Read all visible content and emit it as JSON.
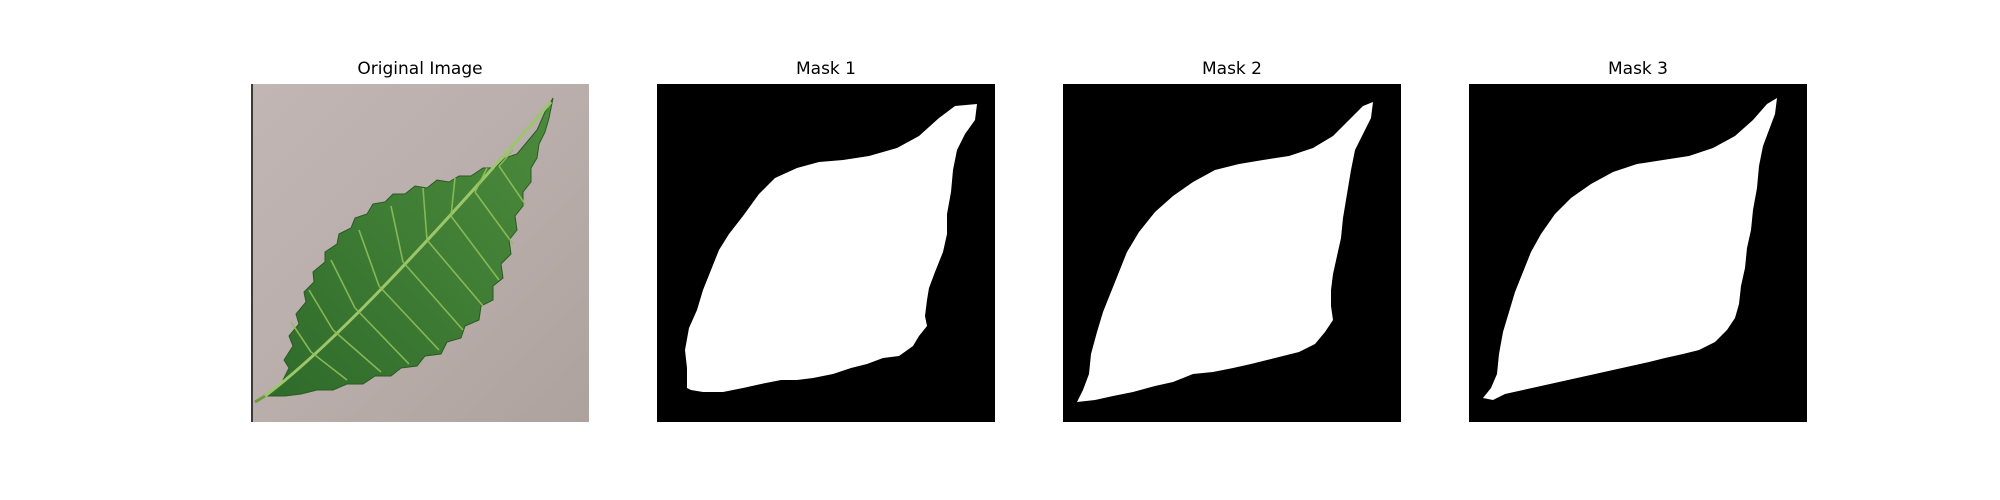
{
  "panels": [
    {
      "title": "Original Image",
      "kind": "photo"
    },
    {
      "title": "Mask 1",
      "kind": "mask"
    },
    {
      "title": "Mask 2",
      "kind": "mask"
    },
    {
      "title": "Mask 3",
      "kind": "mask"
    }
  ],
  "colors": {
    "background": "#ffffff",
    "photo_background": "#b7aca9",
    "leaf_green": "#3f7a34",
    "leaf_dark": "#245b23",
    "vein": "#8fbf5a",
    "mask_background": "#000000",
    "mask_foreground": "#ffffff"
  }
}
